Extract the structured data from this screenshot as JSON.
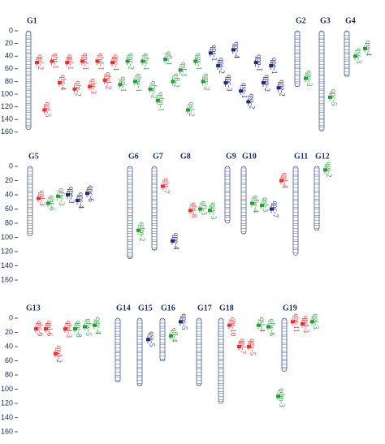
{
  "panels": [
    {
      "yticks": [
        0,
        20,
        40,
        60,
        80,
        100,
        120,
        140,
        160
      ],
      "groups": [
        {
          "name": "G1",
          "length": 156,
          "markers": [
            {
              "label": "qpl-2",
              "pos": 50,
              "color": "#e8312f"
            },
            {
              "label": "qpl-5",
              "pos": 125,
              "color": "#e8312f"
            },
            {
              "label": "qht-1",
              "pos": 48,
              "color": "#e8312f"
            },
            {
              "label": "qht-4",
              "pos": 82,
              "color": "#e8312f"
            },
            {
              "label": "qpl-1",
              "pos": 50,
              "color": "#e8312f"
            },
            {
              "label": "qht-2",
              "pos": 92,
              "color": "#e8312f"
            },
            {
              "label": "qpd-1",
              "pos": 48,
              "color": "#e8312f"
            },
            {
              "label": "qht-3",
              "pos": 88,
              "color": "#e8312f"
            },
            {
              "label": "qhd-1",
              "pos": 48,
              "color": "#e8312f"
            },
            {
              "label": "qhd-2",
              "pos": 78,
              "color": "#e8312f"
            },
            {
              "label": "qpc-1",
              "pos": 50,
              "color": "#e8312f"
            },
            {
              "label": "qgi-1",
              "pos": 85,
              "color": "#2a9a3a"
            },
            {
              "label": "qpc-2",
              "pos": 48,
              "color": "#2a9a3a"
            },
            {
              "label": "qhw-1",
              "pos": 80,
              "color": "#2a9a3a"
            },
            {
              "label": "qfw-1",
              "pos": 48,
              "color": "#2a9a3a"
            },
            {
              "label": "qfw-2",
              "pos": 92,
              "color": "#2a9a3a"
            },
            {
              "label": "qdm-1",
              "pos": 110,
              "color": "#2a9a3a"
            },
            {
              "label": "qfl-1",
              "pos": 45,
              "color": "#2a9a3a"
            },
            {
              "label": "qfl-2",
              "pos": 80,
              "color": "#2a9a3a"
            },
            {
              "label": "qsl-1",
              "pos": 62,
              "color": "#2a9a3a"
            },
            {
              "label": "qsl-2",
              "pos": 125,
              "color": "#2a9a3a"
            },
            {
              "label": "qgy-1",
              "pos": 48,
              "color": "#2a9a3a"
            },
            {
              "label": "qgy-2",
              "pos": 80,
              "color": "#2a9a3a"
            },
            {
              "label": "qps-1",
              "pos": 35,
              "color": "#1f2a7a"
            },
            {
              "label": "qps-2",
              "pos": 55,
              "color": "#1f2a7a"
            },
            {
              "label": "qpc-3",
              "pos": 82,
              "color": "#1f2a7a"
            },
            {
              "label": "qpc-4",
              "pos": 30,
              "color": "#1f2a7a"
            },
            {
              "label": "qss-1",
              "pos": 95,
              "color": "#1f2a7a"
            },
            {
              "label": "qss-2",
              "pos": 112,
              "color": "#1f2a7a"
            },
            {
              "label": "qpp-1",
              "pos": 50,
              "color": "#1f2a7a"
            },
            {
              "label": "qpp-2",
              "pos": 82,
              "color": "#1f2a7a"
            },
            {
              "label": "qpe-1",
              "pos": 55,
              "color": "#1f2a7a"
            },
            {
              "label": "qpe-2",
              "pos": 90,
              "color": "#1f2a7a"
            }
          ]
        },
        {
          "name": "G2",
          "length": 88,
          "markers": [
            {
              "label": "qps-3",
              "pos": 75,
              "color": "#2a9a3a"
            }
          ]
        },
        {
          "name": "G3",
          "length": 158,
          "markers": [
            {
              "label": "qpc-5",
              "pos": 105,
              "color": "#2a9a3a"
            }
          ]
        },
        {
          "name": "G4",
          "length": 72,
          "markers": [
            {
              "label": "qss-3",
              "pos": 40,
              "color": "#2a9a3a"
            },
            {
              "label": "qss-4",
              "pos": 28,
              "color": "#2a9a3a"
            }
          ]
        }
      ]
    },
    {
      "yticks": [
        0,
        20,
        40,
        60,
        80,
        100,
        120,
        140,
        160
      ],
      "groups": [
        {
          "name": "G5",
          "length": 98,
          "markers": [
            {
              "label": "qpl-3",
              "pos": 45,
              "color": "#e8312f"
            },
            {
              "label": "qht-6",
              "pos": 52,
              "color": "#2a9a3a"
            },
            {
              "label": "qfw-3",
              "pos": 42,
              "color": "#2a9a3a"
            },
            {
              "label": "qpe-3",
              "pos": 40,
              "color": "#1f2a7a"
            },
            {
              "label": "qps-4",
              "pos": 48,
              "color": "#1f2a7a"
            },
            {
              "label": "qpc-6",
              "pos": 38,
              "color": "#1f2a7a"
            }
          ]
        },
        {
          "name": "G6",
          "length": 130,
          "markers": [
            {
              "label": "qdm-2",
              "pos": 90,
              "color": "#2a9a3a"
            }
          ]
        },
        {
          "name": "G7",
          "length": 118,
          "markers": [
            {
              "label": "qht-7",
              "pos": 28,
              "color": "#e8312f"
            },
            {
              "label": "qpe-4",
              "pos": 105,
              "color": "#1f2a7a"
            }
          ]
        },
        {
          "name": "G8",
          "length": 0,
          "markers": [
            {
              "label": "qht-8",
              "pos": 62,
              "color": "#e8312f"
            },
            {
              "label": "qfl-3",
              "pos": 60,
              "color": "#2a9a3a"
            },
            {
              "label": "qgy-3",
              "pos": 62,
              "color": "#2a9a3a"
            }
          ]
        },
        {
          "name": "G9",
          "length": 80,
          "markers": []
        },
        {
          "name": "G10",
          "length": 95,
          "markers": [
            {
              "label": "qfw-4",
              "pos": 52,
              "color": "#2a9a3a"
            },
            {
              "label": "qsl-3",
              "pos": 55,
              "color": "#2a9a3a"
            },
            {
              "label": "qpc-7",
              "pos": 60,
              "color": "#1f2a7a"
            },
            {
              "label": "qpl-4",
              "pos": 20,
              "color": "#e8312f"
            }
          ]
        },
        {
          "name": "G11",
          "length": 125,
          "markers": []
        },
        {
          "name": "G12",
          "length": 90,
          "markers": [
            {
              "label": "qgi-2",
              "pos": 5,
              "color": "#2a9a3a"
            }
          ]
        }
      ]
    },
    {
      "yticks": [
        0,
        20,
        40,
        60,
        80,
        100,
        120,
        140,
        160
      ],
      "groups": [
        {
          "name": "G13",
          "length": 0,
          "markers": [
            {
              "label": "qht-9",
              "pos": 15,
              "color": "#e8312f"
            },
            {
              "label": "qpl-6",
              "pos": 15,
              "color": "#e8312f"
            },
            {
              "label": "qpd-2",
              "pos": 50,
              "color": "#e8312f"
            },
            {
              "label": "qhd-3",
              "pos": 15,
              "color": "#e8312f"
            },
            {
              "label": "qpc-8",
              "pos": 15,
              "color": "#2a9a3a"
            },
            {
              "label": "qfw-5",
              "pos": 12,
              "color": "#2a9a3a"
            },
            {
              "label": "qgy-4",
              "pos": 10,
              "color": "#2a9a3a"
            }
          ]
        },
        {
          "name": "G14",
          "length": 90,
          "markers": []
        },
        {
          "name": "G15",
          "length": 95,
          "markers": [
            {
              "label": "qss-5",
              "pos": 30,
              "color": "#1f2a7a"
            }
          ]
        },
        {
          "name": "G16",
          "length": 60,
          "markers": [
            {
              "label": "qfl-4",
              "pos": 25,
              "color": "#2a9a3a"
            },
            {
              "label": "qps-5",
              "pos": 5,
              "color": "#1f2a7a"
            }
          ]
        },
        {
          "name": "G17",
          "length": 95,
          "markers": []
        },
        {
          "name": "G18",
          "length": 120,
          "markers": [
            {
              "label": "qht-10",
              "pos": 10,
              "color": "#e8312f"
            },
            {
              "label": "qpl-7",
              "pos": 40,
              "color": "#e8312f"
            },
            {
              "label": "qgy-5",
              "pos": 40,
              "color": "#e8312f"
            },
            {
              "label": "qsl-4",
              "pos": 10,
              "color": "#2a9a3a"
            },
            {
              "label": "qfw-6",
              "pos": 12,
              "color": "#2a9a3a"
            },
            {
              "label": "qdm-3",
              "pos": 110,
              "color": "#2a9a3a"
            }
          ]
        },
        {
          "name": "G19",
          "length": 75,
          "markers": [
            {
              "label": "qht-11",
              "pos": 5,
              "color": "#e8312f"
            },
            {
              "label": "qpd-3",
              "pos": 8,
              "color": "#e8312f"
            },
            {
              "label": "qgi-3",
              "pos": 5,
              "color": "#2a9a3a"
            }
          ]
        }
      ]
    }
  ]
}
